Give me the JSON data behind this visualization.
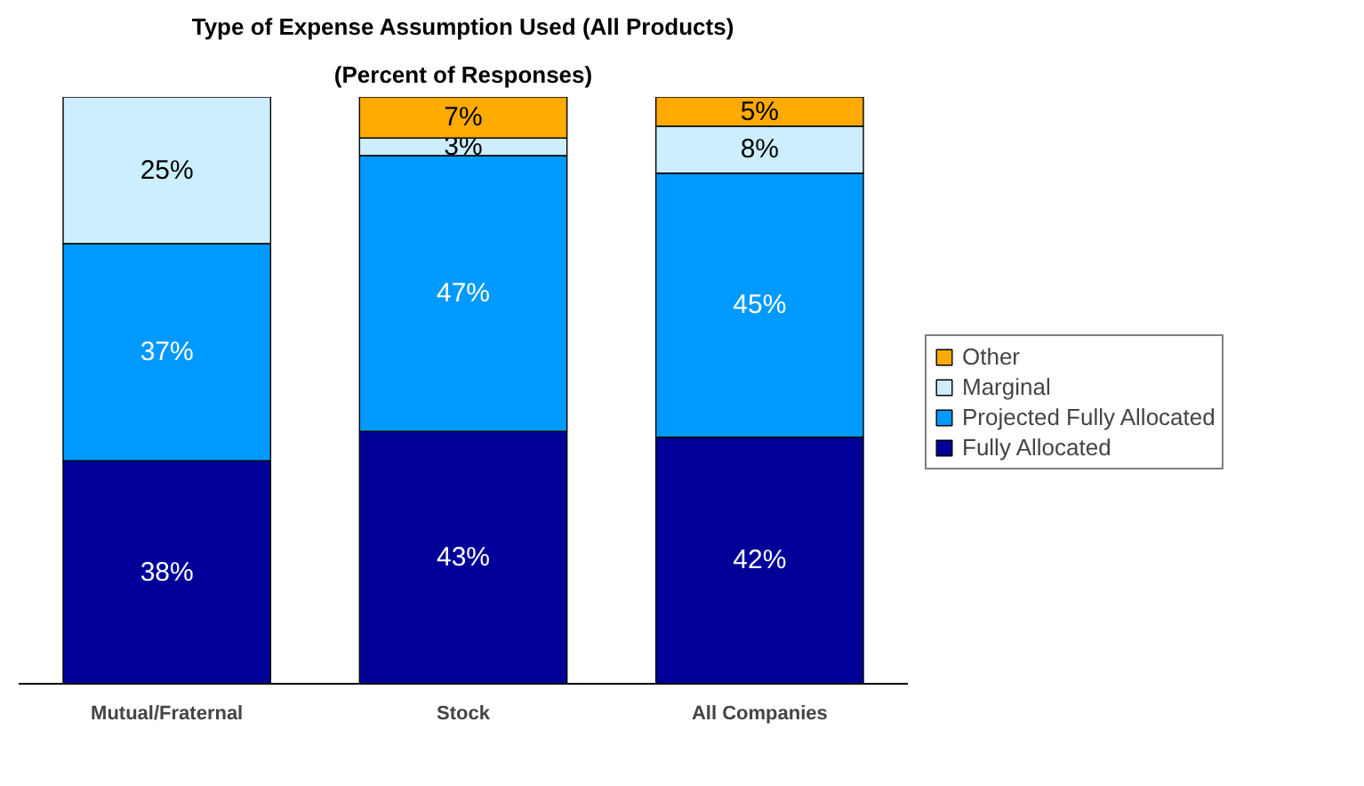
{
  "chart_data": {
    "type": "bar",
    "title": "Type of Expense Assumption Used (All Products)",
    "subtitle": "(Percent of Responses)",
    "categories": [
      "Mutual/Fraternal",
      "Stock",
      "All Companies"
    ],
    "stacked": true,
    "ylim": [
      0,
      100
    ],
    "tick_labels": "x",
    "legend": "right",
    "grid": false,
    "series": [
      {
        "name": "Fully Allocated",
        "color": "#000099",
        "values": [
          38,
          43,
          42
        ],
        "value_labels": [
          "38%",
          "43%",
          "42%"
        ]
      },
      {
        "name": "Projected Fully Allocated",
        "color": "#0099ff",
        "values": [
          37,
          47,
          45
        ],
        "value_labels": [
          "37%",
          "47%",
          "45%"
        ]
      },
      {
        "name": "Marginal",
        "color": "#cceeff",
        "values": [
          25,
          3,
          8
        ],
        "value_labels": [
          "25%",
          "3%",
          "8%"
        ]
      },
      {
        "name": "Other",
        "color": "#ffaa00",
        "values": [
          null,
          7,
          5
        ],
        "value_labels": [
          null,
          "7%",
          "5%"
        ]
      }
    ]
  }
}
